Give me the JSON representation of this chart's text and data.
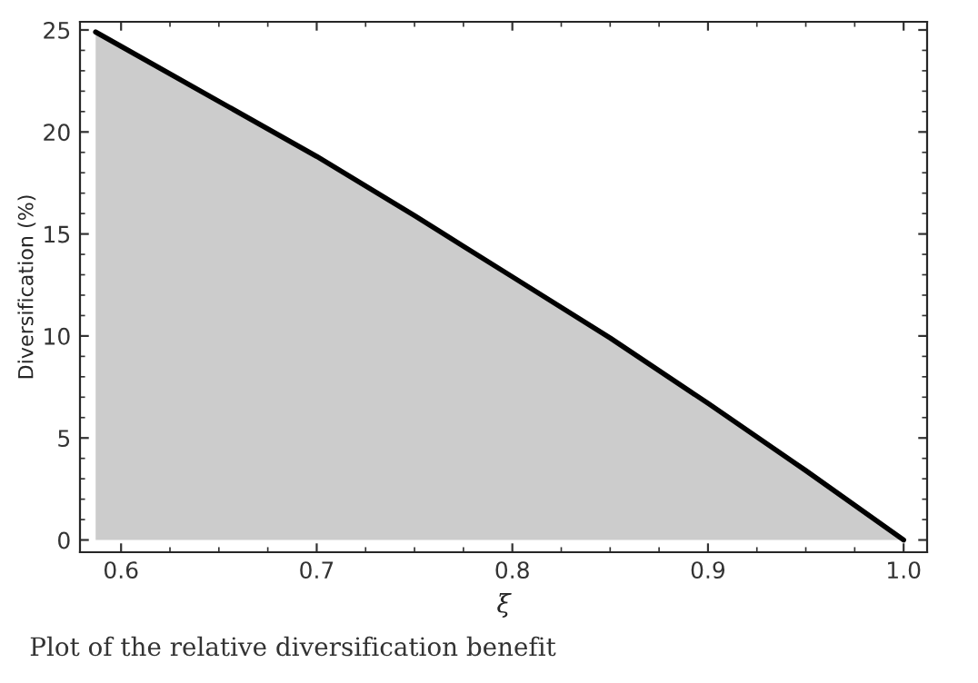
{
  "chart_data": {
    "type": "area",
    "xlabel": "ξ",
    "ylabel": "Diversification (%)",
    "x": [
      0.587,
      0.6,
      0.65,
      0.7,
      0.75,
      0.8,
      0.85,
      0.9,
      0.95,
      1.0
    ],
    "series": [
      {
        "color": "#cccccc",
        "values": [
          24.9,
          24.2,
          21.5,
          18.8,
          15.9,
          12.9,
          9.9,
          6.7,
          3.4,
          0
        ]
      }
    ],
    "xlim": [
      0.579,
      1.012
    ],
    "ylim": [
      -0.6,
      25.4
    ],
    "xticks": [
      {
        "value": 0.6,
        "label": "0.6"
      },
      {
        "value": 0.7,
        "label": "0.7"
      },
      {
        "value": 0.8,
        "label": "0.8"
      },
      {
        "value": 0.9,
        "label": "0.9"
      },
      {
        "value": 1.0,
        "label": "1.0"
      }
    ],
    "yticks": [
      0,
      5,
      10,
      15,
      20,
      25
    ],
    "annotations": [
      "Plot of the relative diversification benefit"
    ],
    "grid": false,
    "legend": false
  }
}
